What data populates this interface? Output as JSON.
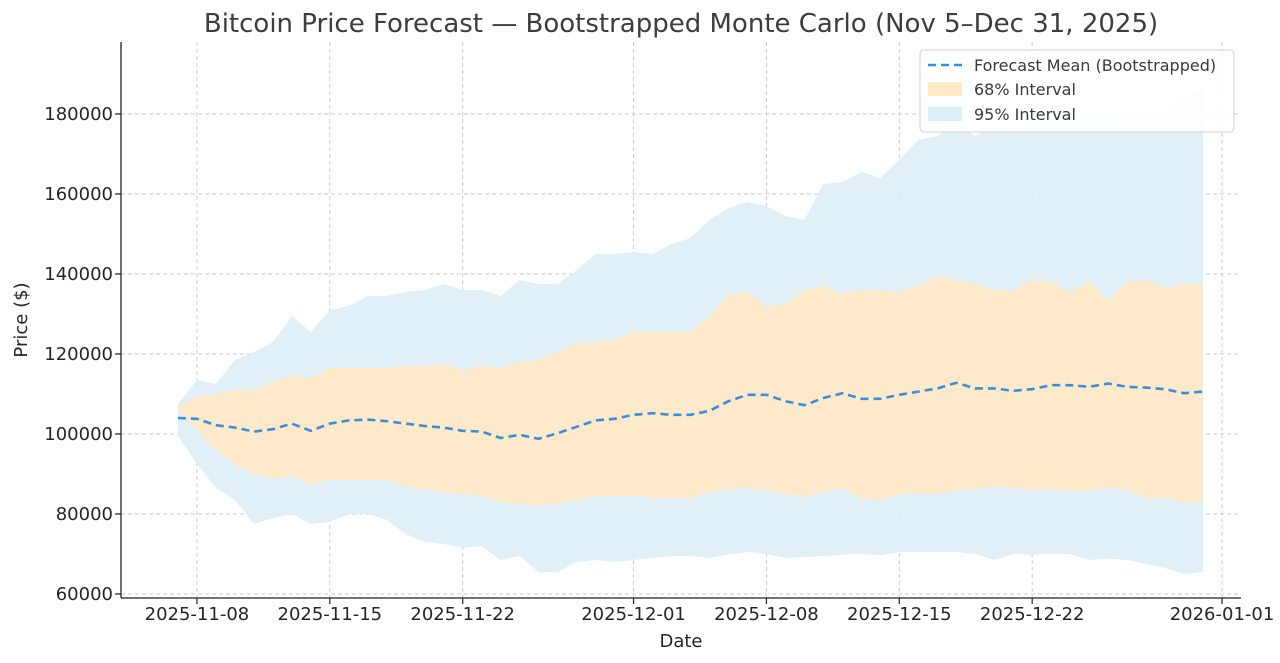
{
  "chart_data": {
    "type": "area",
    "title": "Bitcoin Price Forecast — Bootstrapped Monte Carlo (Nov 5–Dec 31, 2025)",
    "xlabel": "Date",
    "ylabel": "Price ($)",
    "ylim": [
      59000,
      198000
    ],
    "xlim": [
      "2025-11-04",
      "2026-01-02"
    ],
    "yticks": [
      60000,
      80000,
      100000,
      120000,
      140000,
      160000,
      180000
    ],
    "xticks": [
      "2025-11-08",
      "2025-11-15",
      "2025-11-22",
      "2025-12-01",
      "2025-12-08",
      "2025-12-15",
      "2025-12-22",
      "2026-01-01"
    ],
    "grid": true,
    "legend_position": "top-right",
    "start_date": "2025-11-07",
    "series": [
      {
        "name": "Forecast Mean (Bootstrapped)",
        "style": "dashed-line",
        "color": "#3a8fdd",
        "values": [
          104000,
          103800,
          102200,
          101600,
          100600,
          101200,
          102600,
          100800,
          102600,
          103400,
          103600,
          103200,
          102600,
          102000,
          101600,
          100800,
          100600,
          99000,
          99800,
          98800,
          100200,
          101800,
          103400,
          103800,
          104800,
          105200,
          104800,
          104800,
          105800,
          108200,
          109800,
          109800,
          108200,
          107200,
          109000,
          110200,
          108800,
          108800,
          109800,
          110600,
          111400,
          112800,
          111400,
          111400,
          110800,
          111200,
          112200,
          112200,
          111800,
          112600,
          111800,
          111600,
          111200,
          110200,
          110600
        ]
      },
      {
        "name": "68% Interval",
        "style": "band",
        "color": "#ffe9c7",
        "lower": [
          106000,
          101000,
          96000,
          92500,
          90000,
          88800,
          89500,
          87500,
          88500,
          88500,
          88500,
          88500,
          87000,
          86000,
          85500,
          85000,
          84500,
          83000,
          82500,
          82000,
          82500,
          83500,
          84500,
          84500,
          84500,
          84000,
          84000,
          84000,
          85500,
          86200,
          86500,
          86000,
          85000,
          84200,
          85500,
          86500,
          83800,
          83500,
          85000,
          85200,
          85000,
          86000,
          86200,
          87000,
          86500,
          85800,
          86200,
          85800,
          85800,
          86500,
          86000,
          83800,
          84200,
          82800,
          83200
        ],
        "upper": [
          107000,
          109500,
          109800,
          111200,
          111000,
          113000,
          114500,
          113800,
          116500,
          116500,
          116500,
          116500,
          117000,
          117000,
          117500,
          116000,
          117000,
          116500,
          118000,
          118500,
          120500,
          122500,
          123000,
          123500,
          125500,
          125500,
          125500,
          125500,
          129500,
          134500,
          135500,
          132000,
          132500,
          136000,
          137000,
          135000,
          136000,
          136000,
          135500,
          137000,
          139500,
          138500,
          137500,
          136000,
          135800,
          138500,
          138000,
          135500,
          138000,
          133500,
          138000,
          138500,
          136500,
          137500,
          137500
        ]
      },
      {
        "name": "95% Interval",
        "style": "band",
        "color": "#deeef6",
        "lower": [
          99500,
          92500,
          86500,
          83500,
          77500,
          79000,
          80000,
          77500,
          78000,
          80000,
          80000,
          78500,
          75000,
          73000,
          72500,
          71500,
          72000,
          68500,
          69500,
          65500,
          65500,
          68000,
          68500,
          68000,
          68500,
          69000,
          69500,
          69500,
          69000,
          69800,
          70500,
          70000,
          69000,
          69200,
          69500,
          69800,
          70000,
          69700,
          70500,
          70500,
          70500,
          70500,
          70000,
          68500,
          70000,
          69800,
          70000,
          70000,
          68500,
          68800,
          68500,
          67500,
          66500,
          65000,
          65500
        ],
        "upper": [
          107500,
          113500,
          112500,
          118500,
          120500,
          123000,
          129500,
          125500,
          131000,
          132000,
          134500,
          134500,
          135500,
          136000,
          137500,
          136000,
          136000,
          134500,
          138500,
          137500,
          137500,
          141000,
          145000,
          145000,
          145500,
          145000,
          147500,
          149000,
          153500,
          156500,
          158000,
          157000,
          154500,
          153500,
          162500,
          163000,
          165500,
          164000,
          168500,
          173500,
          174500,
          178000,
          174500,
          177000,
          175500,
          178500,
          178000,
          178500,
          178000,
          179000,
          179000,
          180500,
          180500,
          184000,
          186500
        ]
      }
    ]
  }
}
